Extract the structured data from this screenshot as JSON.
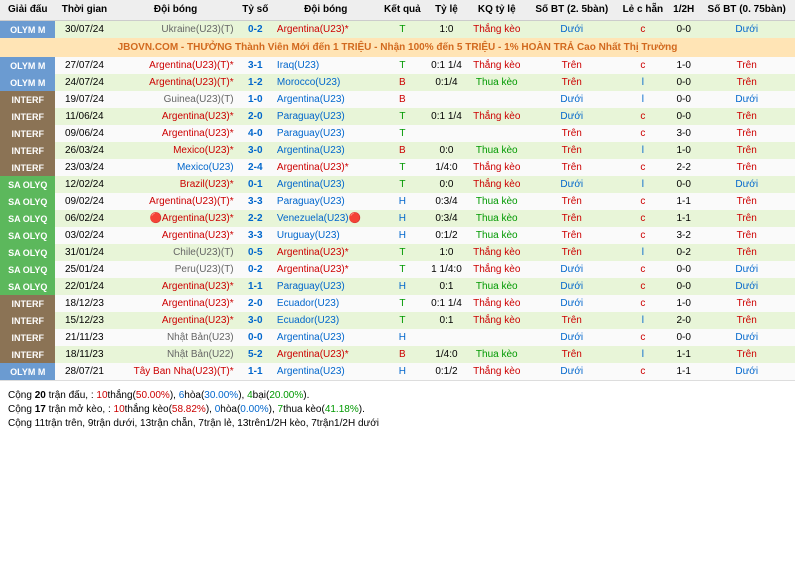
{
  "headers": [
    "Giải đấu",
    "Thời gian",
    "Đội bóng",
    "Tỷ số",
    "Đội bóng",
    "Kết quả",
    "Tỷ lệ",
    "KQ tỷ lệ",
    "Số BT (2. 5bàn)",
    "Lẻ c hẵn",
    "1/2H",
    "Số BT (0. 75bàn)"
  ],
  "banner": "JBOVN.COM - THƯỞNG Thành Viên Mới đến 1 TRIỆU - Nhận 100% đến 5 TRIỆU - 1% HOÀN TRẢ Cao Nhất Thị Trường",
  "rows": [
    {
      "lg": "OLYM M",
      "lgc": "olym",
      "date": "30/07/24",
      "home": "Ukraine(U23)(T)",
      "hc": "gray",
      "score": "0-2",
      "away": "Argentina(U23)*",
      "ac": "red",
      "kq": "T",
      "kqc": "green",
      "tl": "1:0",
      "kqtl": "Thắng kèo",
      "kqtlc": "red",
      "bt25": "Dưới",
      "bt25c": "blue",
      "lc": "c",
      "lcc": "red",
      "h12": "0-0",
      "bt07": "Dưới",
      "bt07c": "blue",
      "row": "green"
    },
    {
      "banner": true
    },
    {
      "lg": "OLYM M",
      "lgc": "olym",
      "date": "27/07/24",
      "home": "Argentina(U23)(T)*",
      "hc": "red",
      "score": "3-1",
      "away": "Iraq(U23)",
      "ac": "blue",
      "kq": "T",
      "kqc": "green",
      "tl": "0:1 1/4",
      "kqtl": "Thắng kèo",
      "kqtlc": "red",
      "bt25": "Trên",
      "bt25c": "red",
      "lc": "c",
      "lcc": "red",
      "h12": "1-0",
      "bt07": "Trên",
      "bt07c": "red",
      "row": "white"
    },
    {
      "lg": "OLYM M",
      "lgc": "olym",
      "date": "24/07/24",
      "home": "Argentina(U23)(T)*",
      "hc": "red",
      "score": "1-2",
      "away": "Morocco(U23)",
      "ac": "blue",
      "kq": "B",
      "kqc": "red",
      "tl": "0:1/4",
      "kqtl": "Thua kèo",
      "kqtlc": "green",
      "bt25": "Trên",
      "bt25c": "red",
      "lc": "l",
      "lcc": "blue",
      "h12": "0-0",
      "bt07": "Trên",
      "bt07c": "red",
      "row": "green"
    },
    {
      "lg": "INTERF",
      "lgc": "interf",
      "date": "19/07/24",
      "home": "Guinea(U23)(T)",
      "hc": "gray",
      "score": "1-0",
      "away": "Argentina(U23)",
      "ac": "blue",
      "kq": "B",
      "kqc": "red",
      "tl": "",
      "kqtl": "",
      "kqtlc": "",
      "bt25": "Dưới",
      "bt25c": "blue",
      "lc": "l",
      "lcc": "blue",
      "h12": "0-0",
      "bt07": "Dưới",
      "bt07c": "blue",
      "row": "white"
    },
    {
      "lg": "INTERF",
      "lgc": "interf",
      "date": "11/06/24",
      "home": "Argentina(U23)*",
      "hc": "red",
      "score": "2-0",
      "away": "Paraguay(U23)",
      "ac": "blue",
      "kq": "T",
      "kqc": "green",
      "tl": "0:1 1/4",
      "kqtl": "Thắng kèo",
      "kqtlc": "red",
      "bt25": "Dưới",
      "bt25c": "blue",
      "lc": "c",
      "lcc": "red",
      "h12": "0-0",
      "bt07": "Trên",
      "bt07c": "red",
      "row": "green"
    },
    {
      "lg": "INTERF",
      "lgc": "interf",
      "date": "09/06/24",
      "home": "Argentina(U23)*",
      "hc": "red",
      "score": "4-0",
      "away": "Paraguay(U23)",
      "ac": "blue",
      "kq": "T",
      "kqc": "green",
      "tl": "",
      "kqtl": "",
      "kqtlc": "",
      "bt25": "Trên",
      "bt25c": "red",
      "lc": "c",
      "lcc": "red",
      "h12": "3-0",
      "bt07": "Trên",
      "bt07c": "red",
      "row": "white"
    },
    {
      "lg": "INTERF",
      "lgc": "interf",
      "date": "26/03/24",
      "home": "Mexico(U23)*",
      "hc": "red",
      "score": "3-0",
      "away": "Argentina(U23)",
      "ac": "blue",
      "kq": "B",
      "kqc": "red",
      "tl": "0:0",
      "kqtl": "Thua kèo",
      "kqtlc": "green",
      "bt25": "Trên",
      "bt25c": "red",
      "lc": "l",
      "lcc": "blue",
      "h12": "1-0",
      "bt07": "Trên",
      "bt07c": "red",
      "row": "green"
    },
    {
      "lg": "INTERF",
      "lgc": "interf",
      "date": "23/03/24",
      "home": "Mexico(U23)",
      "hc": "blue",
      "score": "2-4",
      "away": "Argentina(U23)*",
      "ac": "red",
      "kq": "T",
      "kqc": "green",
      "tl": "1/4:0",
      "kqtl": "Thắng kèo",
      "kqtlc": "red",
      "bt25": "Trên",
      "bt25c": "red",
      "lc": "c",
      "lcc": "red",
      "h12": "2-2",
      "bt07": "Trên",
      "bt07c": "red",
      "row": "white"
    },
    {
      "lg": "SA OLYQ",
      "lgc": "saolyq",
      "date": "12/02/24",
      "home": "Brazil(U23)*",
      "hc": "red",
      "score": "0-1",
      "away": "Argentina(U23)",
      "ac": "blue",
      "kq": "T",
      "kqc": "green",
      "tl": "0:0",
      "kqtl": "Thắng kèo",
      "kqtlc": "red",
      "bt25": "Dưới",
      "bt25c": "blue",
      "lc": "l",
      "lcc": "blue",
      "h12": "0-0",
      "bt07": "Dưới",
      "bt07c": "blue",
      "row": "green"
    },
    {
      "lg": "SA OLYQ",
      "lgc": "saolyq",
      "date": "09/02/24",
      "home": "Argentina(U23)(T)*",
      "hc": "red",
      "score": "3-3",
      "away": "Paraguay(U23)",
      "ac": "blue",
      "kq": "H",
      "kqc": "blue",
      "tl": "0:3/4",
      "kqtl": "Thua kèo",
      "kqtlc": "green",
      "bt25": "Trên",
      "bt25c": "red",
      "lc": "c",
      "lcc": "red",
      "h12": "1-1",
      "bt07": "Trên",
      "bt07c": "red",
      "row": "white"
    },
    {
      "lg": "SA OLYQ",
      "lgc": "saolyq",
      "date": "06/02/24",
      "home": "🔴Argentina(U23)*",
      "hc": "red",
      "score": "2-2",
      "away": "Venezuela(U23)🔴",
      "ac": "blue",
      "kq": "H",
      "kqc": "blue",
      "tl": "0:3/4",
      "kqtl": "Thua kèo",
      "kqtlc": "green",
      "bt25": "Trên",
      "bt25c": "red",
      "lc": "c",
      "lcc": "red",
      "h12": "1-1",
      "bt07": "Trên",
      "bt07c": "red",
      "row": "green"
    },
    {
      "lg": "SA OLYQ",
      "lgc": "saolyq",
      "date": "03/02/24",
      "home": "Argentina(U23)*",
      "hc": "red",
      "score": "3-3",
      "away": "Uruguay(U23)",
      "ac": "blue",
      "kq": "H",
      "kqc": "blue",
      "tl": "0:1/2",
      "kqtl": "Thua kèo",
      "kqtlc": "green",
      "bt25": "Trên",
      "bt25c": "red",
      "lc": "c",
      "lcc": "red",
      "h12": "3-2",
      "bt07": "Trên",
      "bt07c": "red",
      "row": "white"
    },
    {
      "lg": "SA OLYQ",
      "lgc": "saolyq",
      "date": "31/01/24",
      "home": "Chile(U23)(T)",
      "hc": "gray",
      "score": "0-5",
      "away": "Argentina(U23)*",
      "ac": "red",
      "kq": "T",
      "kqc": "green",
      "tl": "1:0",
      "kqtl": "Thắng kèo",
      "kqtlc": "red",
      "bt25": "Trên",
      "bt25c": "red",
      "lc": "l",
      "lcc": "blue",
      "h12": "0-2",
      "bt07": "Trên",
      "bt07c": "red",
      "row": "green"
    },
    {
      "lg": "SA OLYQ",
      "lgc": "saolyq",
      "date": "25/01/24",
      "home": "Peru(U23)(T)",
      "hc": "gray",
      "score": "0-2",
      "away": "Argentina(U23)*",
      "ac": "red",
      "kq": "T",
      "kqc": "green",
      "tl": "1 1/4:0",
      "kqtl": "Thắng kèo",
      "kqtlc": "red",
      "bt25": "Dưới",
      "bt25c": "blue",
      "lc": "c",
      "lcc": "red",
      "h12": "0-0",
      "bt07": "Dưới",
      "bt07c": "blue",
      "row": "white"
    },
    {
      "lg": "SA OLYQ",
      "lgc": "saolyq",
      "date": "22/01/24",
      "home": "Argentina(U23)*",
      "hc": "red",
      "score": "1-1",
      "away": "Paraguay(U23)",
      "ac": "blue",
      "kq": "H",
      "kqc": "blue",
      "tl": "0:1",
      "kqtl": "Thua kèo",
      "kqtlc": "green",
      "bt25": "Dưới",
      "bt25c": "blue",
      "lc": "c",
      "lcc": "red",
      "h12": "0-0",
      "bt07": "Dưới",
      "bt07c": "blue",
      "row": "green"
    },
    {
      "lg": "INTERF",
      "lgc": "interf",
      "date": "18/12/23",
      "home": "Argentina(U23)*",
      "hc": "red",
      "score": "2-0",
      "away": "Ecuador(U23)",
      "ac": "blue",
      "kq": "T",
      "kqc": "green",
      "tl": "0:1 1/4",
      "kqtl": "Thắng kèo",
      "kqtlc": "red",
      "bt25": "Dưới",
      "bt25c": "blue",
      "lc": "c",
      "lcc": "red",
      "h12": "1-0",
      "bt07": "Trên",
      "bt07c": "red",
      "row": "white"
    },
    {
      "lg": "INTERF",
      "lgc": "interf",
      "date": "15/12/23",
      "home": "Argentina(U23)*",
      "hc": "red",
      "score": "3-0",
      "away": "Ecuador(U23)",
      "ac": "blue",
      "kq": "T",
      "kqc": "green",
      "tl": "0:1",
      "kqtl": "Thắng kèo",
      "kqtlc": "red",
      "bt25": "Trên",
      "bt25c": "red",
      "lc": "l",
      "lcc": "blue",
      "h12": "2-0",
      "bt07": "Trên",
      "bt07c": "red",
      "row": "green"
    },
    {
      "lg": "INTERF",
      "lgc": "interf",
      "date": "21/11/23",
      "home": "Nhật Bản(U23)",
      "hc": "gray",
      "score": "0-0",
      "away": "Argentina(U23)",
      "ac": "blue",
      "kq": "H",
      "kqc": "blue",
      "tl": "",
      "kqtl": "",
      "kqtlc": "",
      "bt25": "Dưới",
      "bt25c": "blue",
      "lc": "c",
      "lcc": "red",
      "h12": "0-0",
      "bt07": "Dưới",
      "bt07c": "blue",
      "row": "white"
    },
    {
      "lg": "INTERF",
      "lgc": "interf",
      "date": "18/11/23",
      "home": "Nhật Bản(U22)",
      "hc": "gray",
      "score": "5-2",
      "away": "Argentina(U23)*",
      "ac": "red",
      "kq": "B",
      "kqc": "red",
      "tl": "1/4:0",
      "kqtl": "Thua kèo",
      "kqtlc": "green",
      "bt25": "Trên",
      "bt25c": "red",
      "lc": "l",
      "lcc": "blue",
      "h12": "1-1",
      "bt07": "Trên",
      "bt07c": "red",
      "row": "green"
    },
    {
      "lg": "OLYM M",
      "lgc": "olym",
      "date": "28/07/21",
      "home": "Tây Ban Nha(U23)(T)*",
      "hc": "red",
      "score": "1-1",
      "away": "Argentina(U23)",
      "ac": "blue",
      "kq": "H",
      "kqc": "blue",
      "tl": "0:1/2",
      "kqtl": "Thắng kèo",
      "kqtlc": "red",
      "bt25": "Dưới",
      "bt25c": "blue",
      "lc": "c",
      "lcc": "red",
      "h12": "1-1",
      "bt07": "Dưới",
      "bt07c": "blue",
      "row": "white"
    }
  ],
  "footer": [
    {
      "pre": "Cộng ",
      "b1": "20",
      "t1": " trận đấu, : ",
      "r1": "10",
      "rt1": "thắng(",
      "rp1": "50.00%",
      "t2": "), ",
      "b2": "6",
      "t3": "hòa(",
      "bp2": "30.00%",
      "t4": "), ",
      "g1": "4",
      "gt1": "bại(",
      "gp1": "20.00%",
      "t5": ")."
    },
    {
      "pre": "Cộng ",
      "b1": "17",
      "t1": " trận mở kèo, : ",
      "r1": "10",
      "rt1": "thắng kèo(",
      "rp1": "58.82%",
      "t2": "), ",
      "b2": "0",
      "t3": "hòa(",
      "bp2": "0.00%",
      "t4": "), ",
      "g1": "7",
      "gt1": "thua kèo(",
      "gp1": "41.18%",
      "t5": ")."
    },
    {
      "plain": "Cộng 11trận trên, 9trận dưới, 13trận chẵn, 7trận lẻ, 13trên1/2H kèo, 7trận1/2H dưới"
    }
  ]
}
